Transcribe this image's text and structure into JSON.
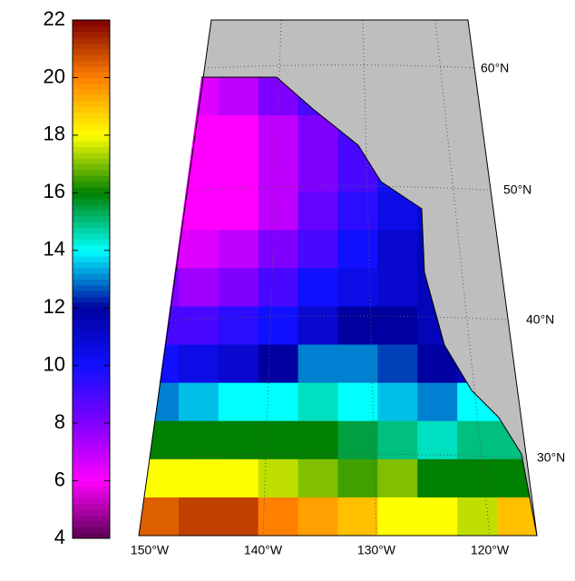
{
  "map": {
    "colorbar": {
      "lim": [
        4,
        22
      ],
      "ticks": [
        4,
        6,
        8,
        10,
        12,
        14,
        16,
        18,
        20,
        22
      ],
      "colors": [
        "#5a0050",
        "#ff00ff",
        "#8000ff",
        "#1010ff",
        "#0000a0",
        "#00ffff",
        "#008000",
        "#ffff00",
        "#ff8000",
        "#800000"
      ]
    },
    "land_color": "#bebebe",
    "field": {
      "values": [
        [
          7,
          6.5,
          7,
          8,
          9,
          10,
          11,
          11,
          11,
          11
        ],
        [
          7,
          6,
          6,
          7,
          8,
          9,
          10,
          11,
          11,
          11
        ],
        [
          7,
          6,
          6,
          7,
          8,
          9,
          10,
          11,
          11,
          11
        ],
        [
          7,
          6,
          6,
          7,
          8.5,
          9.5,
          10.5,
          11,
          11,
          11
        ],
        [
          7,
          6.5,
          7,
          8,
          9,
          10,
          11,
          11.5,
          11.5,
          11.5
        ],
        [
          8,
          7.5,
          8,
          9,
          10,
          10.5,
          11,
          11.5,
          11.5,
          11.5
        ],
        [
          9,
          9,
          9.5,
          10,
          11,
          12,
          12,
          11.5,
          11.5,
          11.5
        ],
        [
          10,
          10.5,
          11,
          12,
          13,
          13,
          12.5,
          12,
          11.5,
          12
        ],
        [
          13,
          13.5,
          14,
          14,
          14.5,
          14,
          13.5,
          13,
          14,
          14
        ],
        [
          16,
          16,
          16,
          16,
          16,
          15.5,
          15,
          14.5,
          15,
          15
        ],
        [
          18,
          18,
          18,
          17.5,
          17,
          16.5,
          17,
          16,
          16,
          16
        ],
        [
          20.5,
          21,
          21,
          20,
          19.5,
          19,
          18,
          18,
          17.5,
          19
        ]
      ]
    },
    "lon_labels": [
      "150°W",
      "140°W",
      "130°W",
      "120°W"
    ],
    "lat_labels": [
      "60°N",
      "50°N",
      "40°N",
      "30°N"
    ]
  }
}
